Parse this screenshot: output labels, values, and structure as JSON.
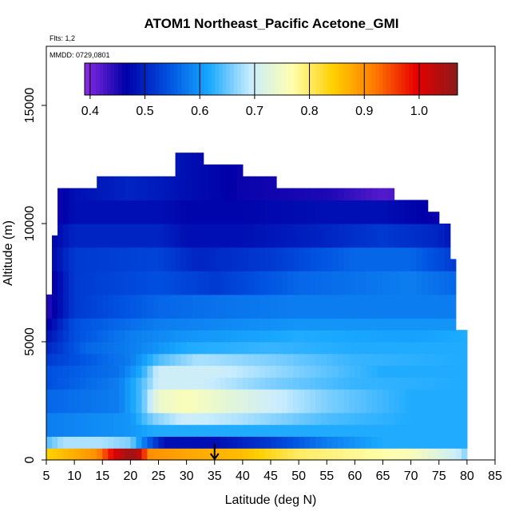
{
  "chart_data": {
    "type": "heatmap",
    "title": "ATOM1 Northeast_Pacific Acetone_GMI",
    "annotations": [
      "Flts: 1,2",
      "MMDD: 0729,0801"
    ],
    "xlabel": "Latitude (deg N)",
    "ylabel": "Altitude (m)",
    "xlim": [
      5,
      85
    ],
    "ylim": [
      0,
      17500
    ],
    "x_ticks": [
      5,
      10,
      15,
      20,
      25,
      30,
      35,
      40,
      45,
      50,
      55,
      60,
      65,
      70,
      75,
      80,
      85
    ],
    "y_ticks": [
      0,
      5000,
      10000,
      15000
    ],
    "colorbar": {
      "min": 0.39,
      "max": 1.07,
      "ticks": [
        0.4,
        0.5,
        0.6,
        0.7,
        0.8,
        0.9,
        1.0
      ],
      "tick_labels": [
        "0.4",
        "0.5",
        "0.6",
        "0.7",
        "0.8",
        "0.9",
        "1.0"
      ],
      "placement": "top inside plot",
      "colors": [
        "#8a2be2",
        "#0000a8",
        "#0050e0",
        "#18a8ff",
        "#c8ecff",
        "#ffffb0",
        "#ffd000",
        "#ff7a00",
        "#e80000",
        "#8a1a1a"
      ]
    },
    "marker": {
      "type": "arrow-down",
      "x": 35
    },
    "grid": false,
    "legend": "none",
    "lat_edges": [
      5,
      6,
      7,
      8,
      9,
      10,
      11,
      12,
      13,
      14,
      15,
      16,
      17,
      18,
      19,
      20,
      21,
      22,
      23,
      24,
      25,
      26,
      27,
      28,
      29,
      30,
      31,
      32,
      33,
      34,
      35,
      36,
      37,
      38,
      39,
      40,
      41,
      42,
      43,
      44,
      45,
      46,
      47,
      48,
      49,
      50,
      51,
      52,
      53,
      54,
      55,
      56,
      57,
      58,
      59,
      60,
      61,
      62,
      63,
      64,
      65,
      66,
      67,
      68,
      69,
      70,
      71,
      72,
      73,
      74,
      75,
      76,
      77,
      78,
      79,
      80
    ],
    "alt_edges": [
      0,
      500,
      1000,
      1500,
      2000,
      2500,
      3000,
      3500,
      4000,
      4500,
      5000,
      5500,
      6000,
      6500,
      7000,
      7500,
      8000,
      8500,
      9000,
      9500,
      10000,
      10500,
      11000,
      11500,
      12000,
      12500,
      13000
    ],
    "column_tops": [
      6800,
      9500,
      11500,
      11500,
      11500,
      11500,
      11500,
      11500,
      11500,
      12000,
      12000,
      12000,
      12000,
      12000,
      12000,
      12000,
      12000,
      12000,
      12000,
      12000,
      12000,
      12000,
      12000,
      13000,
      13000,
      13000,
      13000,
      13000,
      12500,
      12500,
      12500,
      12500,
      12500,
      12500,
      12500,
      12000,
      12000,
      12000,
      12000,
      12000,
      12000,
      11500,
      11500,
      11500,
      11500,
      11500,
      11500,
      11500,
      11500,
      11500,
      11500,
      11500,
      11500,
      11500,
      11500,
      11500,
      11500,
      11500,
      11500,
      11500,
      11500,
      11500,
      11000,
      11000,
      11000,
      11000,
      11000,
      11000,
      10500,
      10500,
      10000,
      10000,
      8500,
      5500,
      5500
    ],
    "rows": [
      {
        "alt": [
          0,
          500
        ],
        "stops": [
          [
            5,
            0.84
          ],
          [
            14,
            0.9
          ],
          [
            17,
            1.0
          ],
          [
            20,
            1.06
          ],
          [
            22,
            1.02
          ],
          [
            23,
            0.9
          ],
          [
            30,
            0.88
          ],
          [
            40,
            0.86
          ],
          [
            50,
            0.8
          ],
          [
            60,
            0.78
          ],
          [
            70,
            0.76
          ],
          [
            78,
            0.7
          ],
          [
            80,
            0.66
          ]
        ]
      },
      {
        "alt": [
          500,
          1000
        ],
        "stops": [
          [
            5,
            0.64
          ],
          [
            8,
            0.68
          ],
          [
            15,
            0.68
          ],
          [
            20,
            0.66
          ],
          [
            23,
            0.56
          ],
          [
            26,
            0.48
          ],
          [
            35,
            0.48
          ],
          [
            45,
            0.52
          ],
          [
            55,
            0.58
          ],
          [
            65,
            0.62
          ],
          [
            75,
            0.62
          ],
          [
            80,
            0.62
          ]
        ]
      },
      {
        "alt": [
          1000,
          1500
        ],
        "stops": [
          [
            5,
            0.58
          ],
          [
            20,
            0.6
          ],
          [
            24,
            0.62
          ],
          [
            35,
            0.62
          ],
          [
            60,
            0.62
          ],
          [
            80,
            0.62
          ]
        ]
      },
      {
        "alt": [
          1500,
          2000
        ],
        "stops": [
          [
            5,
            0.58
          ],
          [
            20,
            0.6
          ],
          [
            24,
            0.66
          ],
          [
            30,
            0.7
          ],
          [
            40,
            0.68
          ],
          [
            55,
            0.64
          ],
          [
            70,
            0.62
          ],
          [
            80,
            0.62
          ]
        ]
      },
      {
        "alt": [
          2000,
          3000
        ],
        "stops": [
          [
            5,
            0.56
          ],
          [
            18,
            0.58
          ],
          [
            22,
            0.64
          ],
          [
            25,
            0.74
          ],
          [
            30,
            0.76
          ],
          [
            40,
            0.72
          ],
          [
            55,
            0.66
          ],
          [
            70,
            0.62
          ],
          [
            80,
            0.62
          ]
        ]
      },
      {
        "alt": [
          3000,
          3500
        ],
        "stops": [
          [
            5,
            0.54
          ],
          [
            18,
            0.58
          ],
          [
            22,
            0.64
          ],
          [
            25,
            0.7
          ],
          [
            32,
            0.7
          ],
          [
            45,
            0.66
          ],
          [
            60,
            0.63
          ],
          [
            80,
            0.62
          ]
        ]
      },
      {
        "alt": [
          3500,
          4000
        ],
        "stops": [
          [
            5,
            0.54
          ],
          [
            18,
            0.57
          ],
          [
            22,
            0.62
          ],
          [
            25,
            0.7
          ],
          [
            35,
            0.7
          ],
          [
            50,
            0.66
          ],
          [
            65,
            0.62
          ],
          [
            80,
            0.62
          ]
        ]
      },
      {
        "alt": [
          4000,
          4500
        ],
        "stops": [
          [
            5,
            0.52
          ],
          [
            20,
            0.58
          ],
          [
            25,
            0.64
          ],
          [
            32,
            0.68
          ],
          [
            45,
            0.66
          ],
          [
            60,
            0.63
          ],
          [
            80,
            0.62
          ]
        ]
      },
      {
        "alt": [
          4500,
          5000
        ],
        "stops": [
          [
            5,
            0.5
          ],
          [
            12,
            0.56
          ],
          [
            20,
            0.58
          ],
          [
            30,
            0.62
          ],
          [
            45,
            0.63
          ],
          [
            60,
            0.62
          ],
          [
            80,
            0.62
          ]
        ]
      },
      {
        "alt": [
          5000,
          5500
        ],
        "stops": [
          [
            5,
            0.48
          ],
          [
            10,
            0.54
          ],
          [
            20,
            0.58
          ],
          [
            30,
            0.6
          ],
          [
            50,
            0.62
          ],
          [
            70,
            0.61
          ],
          [
            80,
            0.62
          ]
        ]
      },
      {
        "alt": [
          5500,
          6000
        ],
        "stops": [
          [
            5,
            0.46
          ],
          [
            10,
            0.54
          ],
          [
            25,
            0.58
          ],
          [
            50,
            0.6
          ],
          [
            70,
            0.6
          ],
          [
            78,
            0.6
          ]
        ]
      },
      {
        "alt": [
          6000,
          7000
        ],
        "stops": [
          [
            5,
            0.44
          ],
          [
            10,
            0.52
          ],
          [
            25,
            0.56
          ],
          [
            35,
            0.57
          ],
          [
            50,
            0.58
          ],
          [
            70,
            0.58
          ],
          [
            78,
            0.58
          ]
        ]
      },
      {
        "alt": [
          7000,
          8000
        ],
        "stops": [
          [
            5,
            0.44
          ],
          [
            10,
            0.52
          ],
          [
            25,
            0.54
          ],
          [
            35,
            0.52
          ],
          [
            50,
            0.56
          ],
          [
            70,
            0.58
          ],
          [
            78,
            0.56
          ]
        ]
      },
      {
        "alt": [
          8000,
          9000
        ],
        "stops": [
          [
            5,
            0.46
          ],
          [
            10,
            0.52
          ],
          [
            25,
            0.53
          ],
          [
            32,
            0.5
          ],
          [
            45,
            0.52
          ],
          [
            60,
            0.56
          ],
          [
            70,
            0.56
          ],
          [
            78,
            0.52
          ]
        ]
      },
      {
        "alt": [
          9000,
          10000
        ],
        "stops": [
          [
            5,
            0.46
          ],
          [
            10,
            0.5
          ],
          [
            25,
            0.5
          ],
          [
            30,
            0.48
          ],
          [
            40,
            0.48
          ],
          [
            55,
            0.5
          ],
          [
            65,
            0.52
          ],
          [
            75,
            0.5
          ],
          [
            78,
            0.48
          ]
        ]
      },
      {
        "alt": [
          10000,
          11000
        ],
        "stops": [
          [
            5,
            0.44
          ],
          [
            10,
            0.48
          ],
          [
            25,
            0.48
          ],
          [
            30,
            0.47
          ],
          [
            40,
            0.47
          ],
          [
            55,
            0.48
          ],
          [
            65,
            0.48
          ],
          [
            75,
            0.46
          ],
          [
            78,
            0.46
          ]
        ]
      },
      {
        "alt": [
          11000,
          12000
        ],
        "stops": [
          [
            5,
            0.44
          ],
          [
            10,
            0.48
          ],
          [
            20,
            0.5
          ],
          [
            30,
            0.48
          ],
          [
            40,
            0.46
          ],
          [
            55,
            0.45
          ],
          [
            65,
            0.42
          ],
          [
            75,
            0.44
          ],
          [
            78,
            0.46
          ]
        ]
      },
      {
        "alt": [
          12000,
          13000
        ],
        "stops": [
          [
            5,
            0.46
          ],
          [
            23,
            0.5
          ],
          [
            30,
            0.48
          ],
          [
            40,
            0.46
          ],
          [
            50,
            0.44
          ],
          [
            60,
            0.42
          ],
          [
            78,
            0.44
          ]
        ]
      }
    ]
  }
}
